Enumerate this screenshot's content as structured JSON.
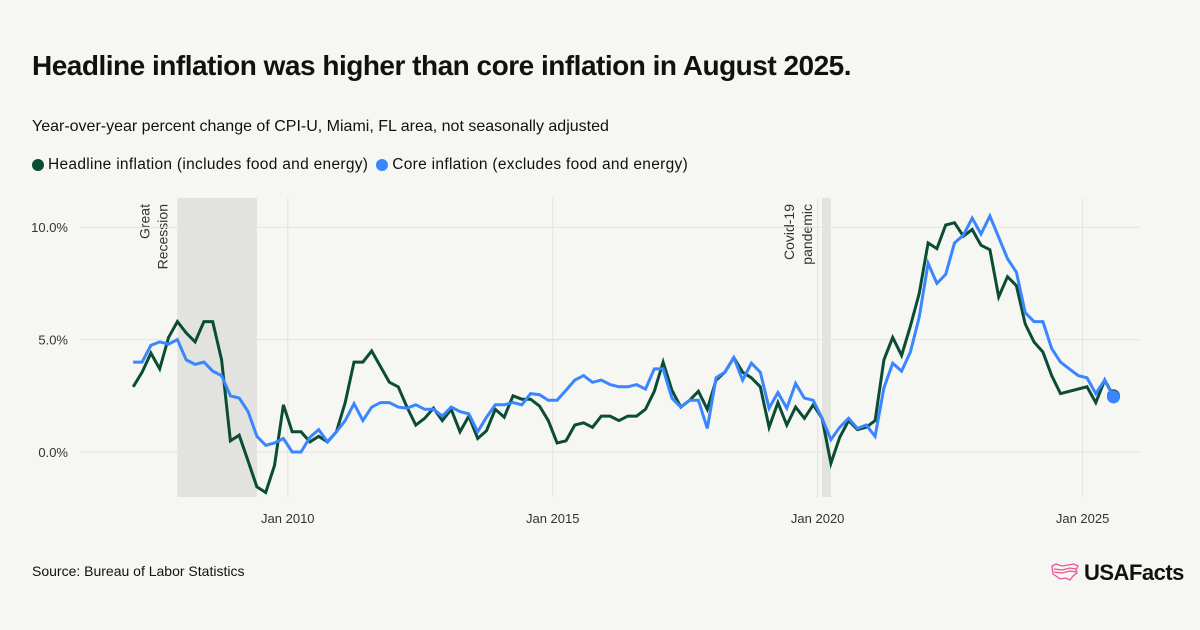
{
  "title": "Headline inflation was higher than core inflation in August 2025.",
  "subtitle": "Year-over-year percent change of CPI-U, Miami, FL area, not seasonally adjusted",
  "source": "Source: Bureau of Labor Statistics",
  "logo": {
    "text": "USAFacts",
    "icon": "us-flag-outline-icon",
    "color": "#e8579b"
  },
  "chart_data": {
    "type": "line",
    "title": "",
    "xlabel": "",
    "ylabel": "",
    "ylim": [
      -2,
      11.3
    ],
    "xlim": [
      "2006-11",
      "2026-02"
    ],
    "grid": true,
    "legend_placement": "top-left",
    "y_ticks": [
      {
        "value": 0,
        "label": "0.0%"
      },
      {
        "value": 5,
        "label": "5.0%"
      },
      {
        "value": 10,
        "label": "10.0%"
      }
    ],
    "x_ticks": [
      {
        "value": "2010-01",
        "label": "Jan 2010"
      },
      {
        "value": "2015-01",
        "label": "Jan 2015"
      },
      {
        "value": "2020-01",
        "label": "Jan 2020"
      },
      {
        "value": "2025-01",
        "label": "Jan 2025"
      }
    ],
    "annotations": [
      {
        "lines": [
          "Great",
          "Recession"
        ],
        "start": "2007-12",
        "end": "2009-06"
      },
      {
        "lines": [
          "Covid-19",
          "pandemic"
        ],
        "start": "2020-02",
        "end": "2020-04"
      }
    ],
    "start": "2007-02",
    "frequency_months": 2,
    "series": [
      {
        "name": "Headline inflation (includes food and energy)",
        "color": "#0b4d34",
        "values": [
          2.9,
          3.55,
          4.4,
          3.7,
          5.1,
          5.8,
          5.3,
          4.9,
          5.8,
          5.8,
          4.1,
          0.5,
          0.75,
          -0.4,
          -1.55,
          -1.8,
          -0.6,
          2.1,
          0.9,
          0.9,
          0.45,
          0.7,
          0.45,
          0.9,
          2.2,
          4.0,
          4.0,
          4.5,
          3.8,
          3.1,
          2.9,
          2.0,
          1.2,
          1.5,
          1.95,
          1.4,
          1.9,
          0.9,
          1.6,
          0.6,
          0.95,
          1.9,
          1.55,
          2.5,
          2.35,
          2.35,
          2.05,
          1.4,
          0.4,
          0.5,
          1.2,
          1.3,
          1.1,
          1.6,
          1.6,
          1.4,
          1.6,
          1.6,
          1.9,
          2.7,
          4.0,
          2.75,
          2.0,
          2.3,
          2.7,
          1.9,
          3.2,
          3.55,
          4.2,
          3.55,
          3.3,
          2.9,
          1.1,
          2.2,
          1.2,
          2.0,
          1.5,
          2.1,
          1.5,
          -0.5,
          0.65,
          1.4,
          1.0,
          1.1,
          1.4,
          4.1,
          5.1,
          4.3,
          5.6,
          7.05,
          9.3,
          9.05,
          10.1,
          10.2,
          9.6,
          9.9,
          9.2,
          9.0,
          6.9,
          7.8,
          7.4,
          5.7,
          4.9,
          4.45,
          3.4,
          2.6,
          null,
          null,
          2.9,
          2.2,
          3.2,
          2.5
        ]
      },
      {
        "name": "Core inflation (excludes food and energy)",
        "color": "#3a86ff",
        "values": [
          4.0,
          4.0,
          4.75,
          4.9,
          4.8,
          5.0,
          4.1,
          3.9,
          4.0,
          3.6,
          3.4,
          2.5,
          2.4,
          1.8,
          0.7,
          0.3,
          0.4,
          0.6,
          0.0,
          0.0,
          0.65,
          1.0,
          0.45,
          0.9,
          1.4,
          2.15,
          1.4,
          2.0,
          2.2,
          2.2,
          2.0,
          1.95,
          2.1,
          1.9,
          1.9,
          1.6,
          2.0,
          1.8,
          1.7,
          0.9,
          1.55,
          2.1,
          2.1,
          2.2,
          2.1,
          2.6,
          2.55,
          2.3,
          2.3,
          2.75,
          3.2,
          3.4,
          3.1,
          3.2,
          3.0,
          2.9,
          2.9,
          3.0,
          2.8,
          3.7,
          3.7,
          2.4,
          2.0,
          2.3,
          2.3,
          1.05,
          3.3,
          3.55,
          4.2,
          3.2,
          3.95,
          3.55,
          1.95,
          2.65,
          1.95,
          3.05,
          2.4,
          2.3,
          1.5,
          0.55,
          1.1,
          1.5,
          1.05,
          1.2,
          0.7,
          2.85,
          3.95,
          3.6,
          4.45,
          6.0,
          8.4,
          7.5,
          7.9,
          9.3,
          9.65,
          10.4,
          9.7,
          10.5,
          9.55,
          8.6,
          8.0,
          6.2,
          5.8,
          5.8,
          4.6,
          4.0,
          3.7,
          3.4,
          3.3,
          2.6,
          3.2,
          2.45
        ]
      }
    ]
  }
}
